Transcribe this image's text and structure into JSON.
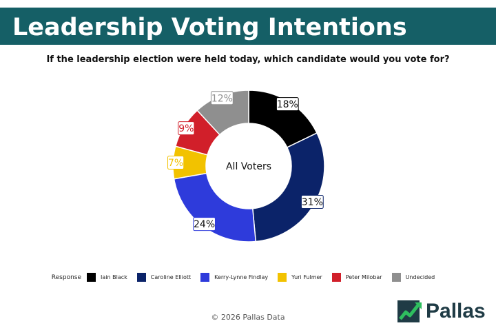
{
  "header": {
    "title": "Leadership Voting Intentions",
    "subtitle": "If the leadership election were held today, which candidate would you vote for?"
  },
  "chart_data": {
    "type": "pie",
    "donut": true,
    "center_label": "All Voters",
    "legend_title": "Response",
    "legend_position": "bottom",
    "slices": [
      {
        "name": "Iain Black",
        "value": 18,
        "label": "18%",
        "color": "#000000"
      },
      {
        "name": "Caroline Elliott",
        "value": 31,
        "label": "31%",
        "color": "#0B2369"
      },
      {
        "name": "Kerry-Lynne Findlay",
        "value": 24,
        "label": "24%",
        "color": "#2E3BDB"
      },
      {
        "name": "Yuri Fulmer",
        "value": 7,
        "label": "7%",
        "color": "#F2C200"
      },
      {
        "name": "Peter Milobar",
        "value": 9,
        "label": "9%",
        "color": "#D11F2A"
      },
      {
        "name": "Undecided",
        "value": 12,
        "label": "12%",
        "color": "#8F8F8F"
      }
    ]
  },
  "footer": {
    "copyright": "© 2026 Pallas Data"
  },
  "logo": {
    "text": "Pallas",
    "icon": "pallas-chart-logo-icon"
  }
}
